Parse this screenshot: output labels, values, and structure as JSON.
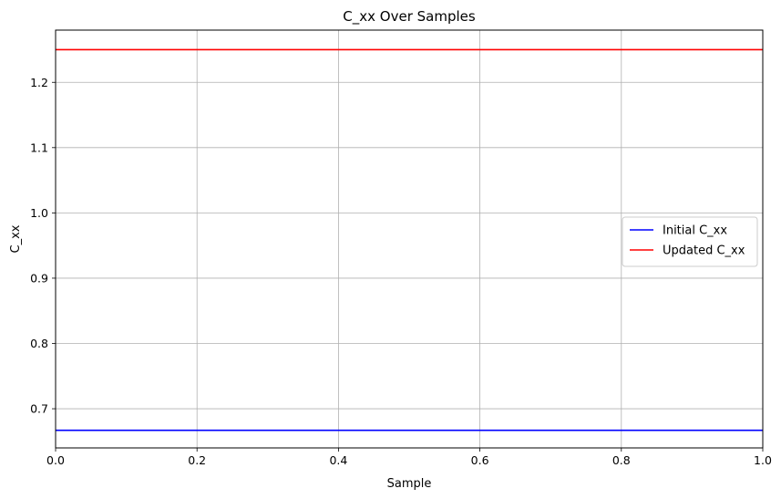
{
  "chart_data": {
    "type": "line",
    "title": "C_xx Over Samples",
    "xlabel": "Sample",
    "ylabel": "C_xx",
    "xlim": [
      0.0,
      1.0
    ],
    "ylim": [
      0.64,
      1.28
    ],
    "xticks": [
      0.0,
      0.2,
      0.4,
      0.6,
      0.8,
      1.0
    ],
    "xtick_labels": [
      "0.0",
      "0.2",
      "0.4",
      "0.6",
      "0.8",
      "1.0"
    ],
    "yticks": [
      0.7,
      0.8,
      0.9,
      1.0,
      1.1,
      1.2
    ],
    "ytick_labels": [
      "0.7",
      "0.8",
      "0.9",
      "1.0",
      "1.1",
      "1.2"
    ],
    "grid": true,
    "legend_position": "center-right",
    "series": [
      {
        "name": "Initial C_xx",
        "color": "#0000ff",
        "x": [
          0.0,
          1.0
        ],
        "y": [
          0.667,
          0.667
        ]
      },
      {
        "name": "Updated C_xx",
        "color": "#ff0000",
        "x": [
          0.0,
          1.0
        ],
        "y": [
          1.25,
          1.25
        ]
      }
    ]
  }
}
